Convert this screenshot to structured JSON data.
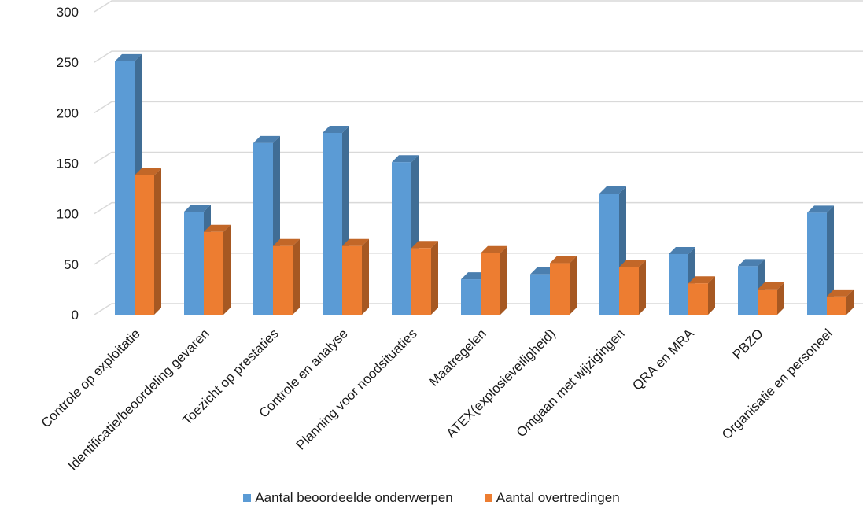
{
  "chart_data": {
    "type": "bar",
    "categories": [
      "Controle op exploitatie",
      "Identificatie/beoordeling gevaren",
      "Toezicht op prestaties",
      "Controle en analyse",
      "Planning voor noodsituaties",
      "Maatregelen",
      "ATEX(explosieveiligheid)",
      "Omgaan met wijzigingen",
      "QRA en MRA",
      "PBZO",
      "Organisatie en personeel"
    ],
    "series": [
      {
        "name": "Aantal beoordeelde onderwerpen",
        "color": "#5b9bd5",
        "values": [
          251,
          102,
          170,
          180,
          151,
          35,
          40,
          120,
          60,
          48,
          101
        ]
      },
      {
        "name": "Aantal overtredingen",
        "color": "#ed7d31",
        "values": [
          138,
          82,
          68,
          68,
          66,
          61,
          51,
          47,
          31,
          25,
          18
        ]
      }
    ],
    "yticks": [
      "0",
      "50",
      "100",
      "150",
      "200",
      "250",
      "300"
    ],
    "ylim": [
      0,
      300
    ],
    "grid": true,
    "legend_position": "bottom",
    "title": "",
    "xlabel": "",
    "ylabel": ""
  }
}
